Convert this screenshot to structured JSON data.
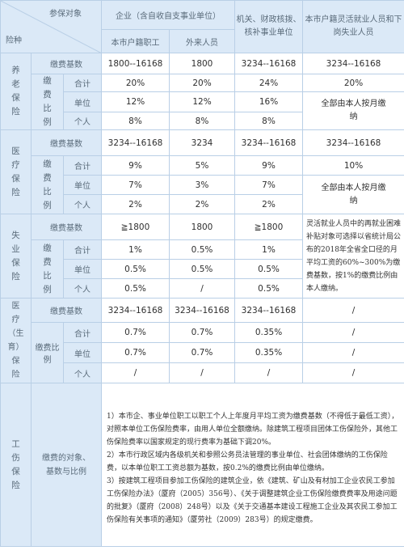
{
  "header": {
    "participants_label": "参保对象",
    "insurance_label": "险种",
    "enterprise": "企业（含自收自支事业单位）",
    "local_staff": "本市户籍职工",
    "migrant": "外来人员",
    "institutions": "机关、财政核拨、核补事业单位",
    "flexible": "本市户籍灵活就业人员和下岗失业人员"
  },
  "pension": {
    "name": "养老保险",
    "base_label": "缴费基数",
    "ratio_label": "缴费比例",
    "total_label": "合计",
    "unit_label": "单位",
    "personal_label": "个人",
    "base": [
      "1800--16168",
      "1800",
      "3234--16168",
      "3234--16168"
    ],
    "total": [
      "20%",
      "20%",
      "24%",
      "20%"
    ],
    "unit": [
      "12%",
      "12%",
      "16%"
    ],
    "personal": [
      "8%",
      "8%",
      "8%"
    ],
    "flex_note": "全部由本人按月缴纳"
  },
  "medical": {
    "name": "医疗保险",
    "base_label": "缴费基数",
    "ratio_label": "缴费比例",
    "total_label": "合计",
    "unit_label": "单位",
    "personal_label": "个人",
    "base": [
      "3234--16168",
      "3234",
      "3234--16168",
      "3234--16168"
    ],
    "total": [
      "9%",
      "5%",
      "9%",
      "10%"
    ],
    "unit": [
      "7%",
      "3%",
      "7%"
    ],
    "personal": [
      "2%",
      "2%",
      "2%"
    ],
    "flex_note": "全部由本人按月缴纳"
  },
  "unemployment": {
    "name": "失业保险",
    "base_label": "缴费基数",
    "ratio_label": "缴费比例",
    "total_label": "合计",
    "unit_label": "单位",
    "personal_label": "个人",
    "base": [
      "≧1800",
      "1800",
      "≧1800"
    ],
    "total": [
      "1%",
      "0.5%",
      "1%"
    ],
    "unit": [
      "0.5%",
      "0.5%",
      "0.5%"
    ],
    "personal": [
      "0.5%",
      "/",
      "0.5%"
    ],
    "flex_note": "灵活就业人员中的再就业困难补贴对象可选择以省统计局公布的2018年全省全口径的月平均工资的60%~300%为缴费基数，按1%的缴费比例由本人缴纳。"
  },
  "maternity": {
    "name": "医疗（生育）保险",
    "base_label": "缴费基数",
    "ratio_label": "缴费比例",
    "total_label": "合计",
    "unit_label": "单位",
    "personal_label": "个人",
    "base": [
      "3234--16168",
      "3234--16168",
      "3234--16168",
      "/"
    ],
    "total": [
      "0.7%",
      "0.7%",
      "0.35%",
      "/"
    ],
    "unit": [
      "0.7%",
      "0.7%",
      "0.35%",
      "/"
    ],
    "personal": [
      "/",
      "/",
      "/",
      "/"
    ]
  },
  "injury": {
    "name": "工伤保险",
    "label": "缴费的对象、基数与比例",
    "notes": [
      "1）本市企、事业单位职工以职工个人上年度月平均工资为缴费基数（不得低于最低工资），对照本单位工伤保险费率，由用人单位全额缴纳。除建筑工程项目团体工伤保险外，其他工伤保险费率以国家规定的现行费率为基础下调20%。",
      "2）本市行政区域内各级机关和参照公务员法管理的事业单位、社会团体缴纳的工伤保险费，以本单位职工工资总额为基数，按0.2%的缴费比例由单位缴纳。",
      "3）按建筑工程项目参加工伤保险的建筑企业，依《建筑、矿山及有材加工企业农民工参加工伤保险办法》（厦府（2005）356号）、《关于调整建筑企业工伤保险缴费费率及用途问题的批复》（厦府（2008）248号）以及《关于交通基本建设工程施工企业及其农民工参加工伤保险有关事项的通知》（厦劳社（2009）283号）的规定缴费。"
    ]
  }
}
